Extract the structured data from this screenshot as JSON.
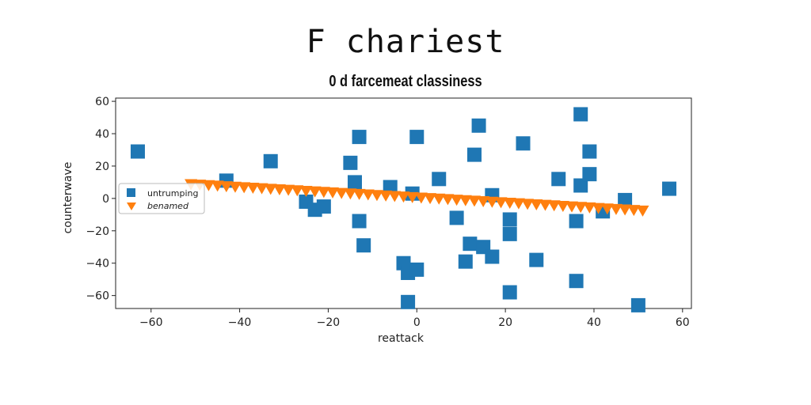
{
  "chart_data": {
    "type": "scatter",
    "title": "F chariest",
    "subtitle": "0 d farcemeat classiness",
    "xlabel": "reattack",
    "ylabel": "counterwave",
    "xlim": [
      -68,
      62
    ],
    "ylim": [
      -68,
      62
    ],
    "xticks": [
      -60,
      -40,
      -20,
      0,
      20,
      40,
      60
    ],
    "yticks": [
      -60,
      -40,
      -20,
      0,
      20,
      40,
      60
    ],
    "grid": false,
    "legend_position": "center-left",
    "series": [
      {
        "name": "untrumping",
        "marker": "square",
        "color": "#1f77b4",
        "points": [
          [
            -63,
            29
          ],
          [
            -43,
            11
          ],
          [
            -33,
            23
          ],
          [
            -25,
            -2
          ],
          [
            -23,
            -7
          ],
          [
            -21,
            -5
          ],
          [
            -15,
            22
          ],
          [
            -13,
            38
          ],
          [
            -14,
            10
          ],
          [
            -13,
            -14
          ],
          [
            -12,
            -29
          ],
          [
            -6,
            7
          ],
          [
            -3,
            -40
          ],
          [
            -2,
            -46
          ],
          [
            -1,
            3
          ],
          [
            -2,
            -64
          ],
          [
            0,
            -44
          ],
          [
            0,
            38
          ],
          [
            5,
            12
          ],
          [
            9,
            -12
          ],
          [
            11,
            -39
          ],
          [
            12,
            -28
          ],
          [
            13,
            27
          ],
          [
            14,
            45
          ],
          [
            15,
            -30
          ],
          [
            17,
            -36
          ],
          [
            17,
            2
          ],
          [
            21,
            -13
          ],
          [
            21,
            -22
          ],
          [
            21,
            -58
          ],
          [
            24,
            34
          ],
          [
            27,
            -38
          ],
          [
            32,
            12
          ],
          [
            36,
            -51
          ],
          [
            36,
            -14
          ],
          [
            37,
            52
          ],
          [
            37,
            8
          ],
          [
            39,
            15
          ],
          [
            39,
            29
          ],
          [
            42,
            -8
          ],
          [
            47,
            -1
          ],
          [
            50,
            -66
          ],
          [
            57,
            6
          ]
        ]
      },
      {
        "name": "benamed",
        "marker": "triangle-down",
        "color": "#ff7f0e",
        "points": [
          [
            -51.0,
            9.0
          ],
          [
            -49.0,
            8.68
          ],
          [
            -47.0,
            8.36
          ],
          [
            -45.0,
            8.04
          ],
          [
            -43.0,
            7.72
          ],
          [
            -41.0,
            7.4
          ],
          [
            -39.0,
            7.08
          ],
          [
            -37.0,
            6.76
          ],
          [
            -35.0,
            6.44
          ],
          [
            -33.0,
            6.12
          ],
          [
            -31.0,
            5.8
          ],
          [
            -29.0,
            5.48
          ],
          [
            -27.0,
            5.16
          ],
          [
            -25.0,
            4.84
          ],
          [
            -23.0,
            4.52
          ],
          [
            -21.0,
            4.2
          ],
          [
            -19.0,
            3.88
          ],
          [
            -17.0,
            3.56
          ],
          [
            -15.0,
            3.24
          ],
          [
            -13.0,
            2.92
          ],
          [
            -11.0,
            2.6
          ],
          [
            -9.0,
            2.28
          ],
          [
            -7.0,
            1.96
          ],
          [
            -5.0,
            1.64
          ],
          [
            -3.0,
            1.32
          ],
          [
            -1.0,
            1.0
          ],
          [
            1.0,
            0.68
          ],
          [
            3.0,
            0.36
          ],
          [
            5.0,
            0.04
          ],
          [
            7.0,
            -0.28
          ],
          [
            9.0,
            -0.6
          ],
          [
            11.0,
            -0.92
          ],
          [
            13.0,
            -1.24
          ],
          [
            15.0,
            -1.56
          ],
          [
            17.0,
            -1.88
          ],
          [
            19.0,
            -2.2
          ],
          [
            21.0,
            -2.52
          ],
          [
            23.0,
            -2.84
          ],
          [
            25.0,
            -3.16
          ],
          [
            27.0,
            -3.48
          ],
          [
            29.0,
            -3.8
          ],
          [
            31.0,
            -4.12
          ],
          [
            33.0,
            -4.44
          ],
          [
            35.0,
            -4.76
          ],
          [
            37.0,
            -5.08
          ],
          [
            39.0,
            -5.4
          ],
          [
            41.0,
            -5.72
          ],
          [
            43.0,
            -6.04
          ],
          [
            45.0,
            -6.36
          ],
          [
            47.0,
            -6.68
          ],
          [
            49.0,
            -7.0
          ],
          [
            51.0,
            -7.32
          ]
        ]
      }
    ]
  }
}
